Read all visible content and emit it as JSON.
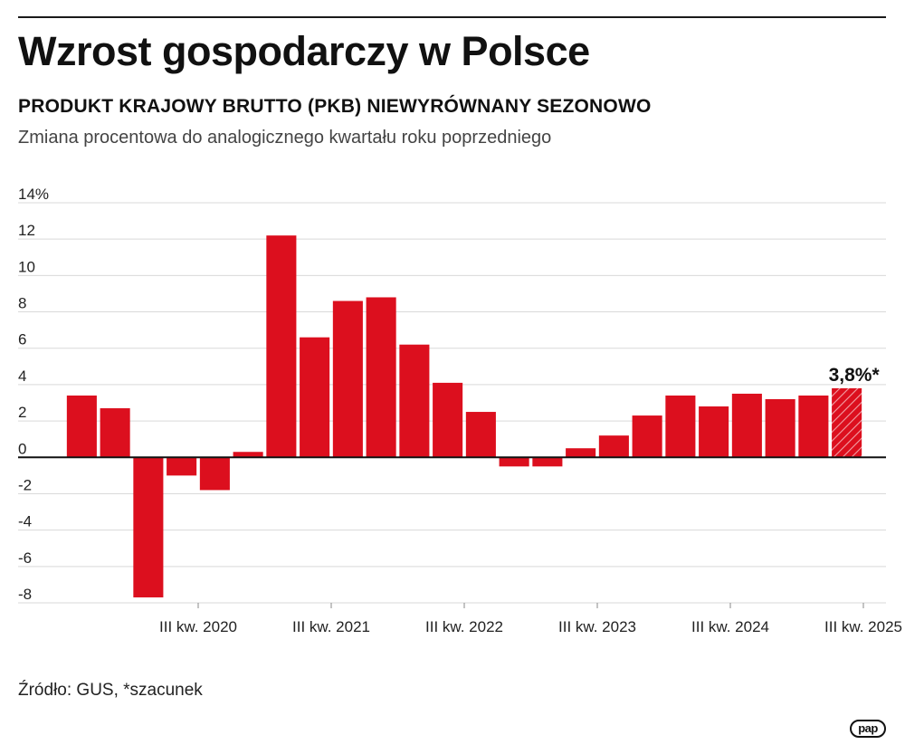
{
  "header": {
    "title": "Wzrost gospodarczy w Polsce",
    "subtitle": "PRODUKT KRAJOWY BRUTTO (PKB) NIEWYRÓWNANY SEZONOWO",
    "description": "Zmiana procentowa do analogicznego kwartału roku poprzedniego"
  },
  "footer": {
    "source": "Źródło: GUS, *szacunek",
    "logo": "pap"
  },
  "colors": {
    "bar": "#dc0f1e",
    "grid": "#d9d9d9",
    "axis": "#111111",
    "text": "#222222"
  },
  "chart_data": {
    "type": "bar",
    "title": "Wzrost gospodarczy w Polsce",
    "ylim": [
      -8,
      14
    ],
    "y_ticks": [
      {
        "value": 14,
        "label": "14%"
      },
      {
        "value": 12,
        "label": "12"
      },
      {
        "value": 10,
        "label": "10"
      },
      {
        "value": 8,
        "label": "8"
      },
      {
        "value": 6,
        "label": "6"
      },
      {
        "value": 4,
        "label": "4"
      },
      {
        "value": 2,
        "label": "2"
      },
      {
        "value": 0,
        "label": "0"
      },
      {
        "value": -2,
        "label": "-2"
      },
      {
        "value": -4,
        "label": "-4"
      },
      {
        "value": -6,
        "label": "-6"
      },
      {
        "value": -8,
        "label": "-8"
      }
    ],
    "grid": true,
    "x_tick_labels": [
      {
        "after_index": 3,
        "label": "III kw. 2020"
      },
      {
        "after_index": 7,
        "label": "III kw. 2021"
      },
      {
        "after_index": 11,
        "label": "III kw. 2022"
      },
      {
        "after_index": 15,
        "label": "III kw. 2023"
      },
      {
        "after_index": 19,
        "label": "III kw. 2024"
      },
      {
        "after_index": 23,
        "label": "III kw. 2025"
      }
    ],
    "values": [
      3.4,
      2.7,
      -7.7,
      -1.0,
      -1.8,
      0.3,
      12.2,
      6.6,
      8.6,
      8.8,
      6.2,
      4.1,
      2.5,
      -0.5,
      -0.5,
      0.5,
      1.2,
      2.3,
      3.4,
      2.8,
      3.5,
      3.2,
      3.4,
      3.8
    ],
    "estimate_index": 23,
    "annotation": {
      "index": 23,
      "label": "3,8%*"
    }
  }
}
